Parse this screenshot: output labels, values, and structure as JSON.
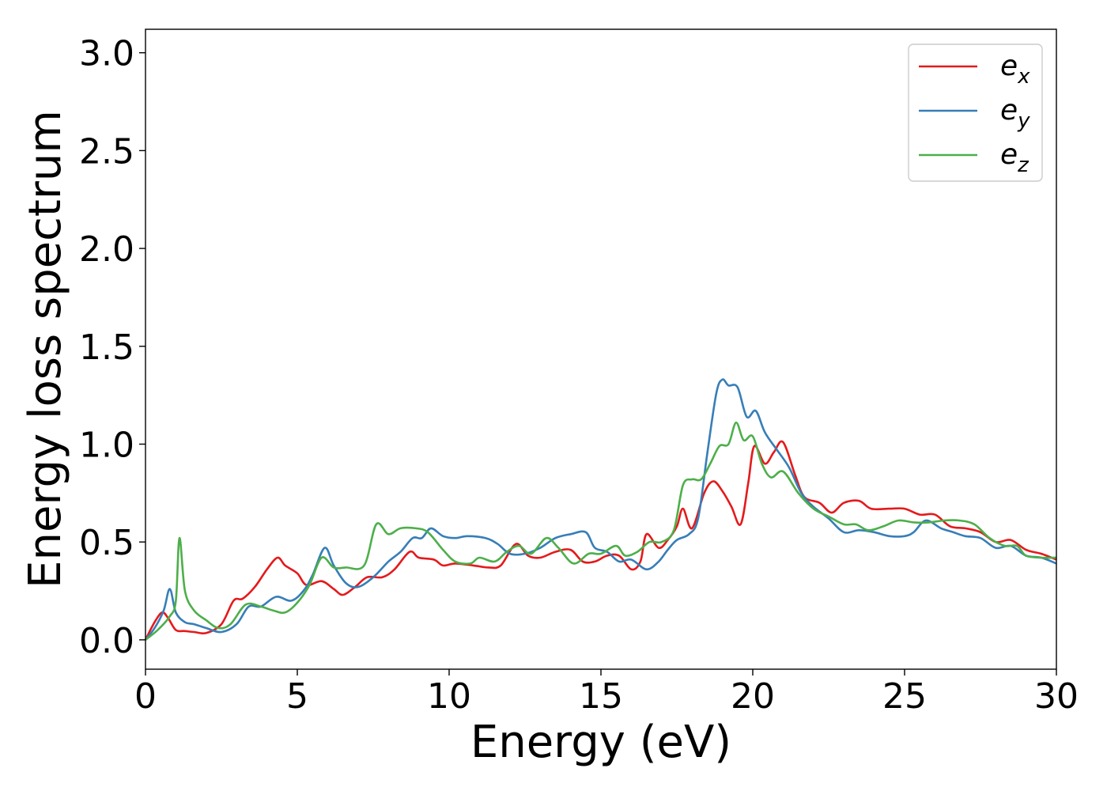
{
  "chart_data": {
    "type": "line",
    "title": "",
    "xlabel": "Energy (eV)",
    "ylabel": "Energy loss spectrum",
    "xlim": [
      0,
      30
    ],
    "ylim": [
      -0.15,
      3.12
    ],
    "xticks": [
      0,
      5,
      10,
      15,
      20,
      25,
      30
    ],
    "xtick_labels": [
      "0",
      "5",
      "10",
      "15",
      "20",
      "25",
      "30"
    ],
    "yticks": [
      0.0,
      0.5,
      1.0,
      1.5,
      2.0,
      2.5,
      3.0
    ],
    "ytick_labels": [
      "0.0",
      "0.5",
      "1.0",
      "1.5",
      "2.0",
      "2.5",
      "3.0"
    ],
    "grid": false,
    "legend_position": "top-right",
    "series": [
      {
        "name": "e_x",
        "label_base": "e",
        "label_sub": "x",
        "color": "#e41a1c",
        "points": [
          [
            0,
            0
          ],
          [
            0.3,
            0.09
          ],
          [
            0.55,
            0.14
          ],
          [
            0.75,
            0.11
          ],
          [
            1.0,
            0.05
          ],
          [
            1.3,
            0.045
          ],
          [
            1.6,
            0.04
          ],
          [
            2.0,
            0.035
          ],
          [
            2.5,
            0.08
          ],
          [
            2.9,
            0.2
          ],
          [
            3.2,
            0.21
          ],
          [
            3.6,
            0.27
          ],
          [
            4.0,
            0.36
          ],
          [
            4.35,
            0.42
          ],
          [
            4.6,
            0.38
          ],
          [
            5.0,
            0.34
          ],
          [
            5.3,
            0.28
          ],
          [
            5.8,
            0.3
          ],
          [
            6.2,
            0.26
          ],
          [
            6.5,
            0.23
          ],
          [
            6.9,
            0.27
          ],
          [
            7.3,
            0.32
          ],
          [
            7.8,
            0.32
          ],
          [
            8.2,
            0.36
          ],
          [
            8.7,
            0.45
          ],
          [
            9.0,
            0.42
          ],
          [
            9.5,
            0.41
          ],
          [
            9.8,
            0.38
          ],
          [
            10.2,
            0.39
          ],
          [
            10.8,
            0.38
          ],
          [
            11.3,
            0.37
          ],
          [
            11.7,
            0.38
          ],
          [
            12.2,
            0.49
          ],
          [
            12.6,
            0.43
          ],
          [
            13.0,
            0.42
          ],
          [
            13.5,
            0.45
          ],
          [
            14.0,
            0.46
          ],
          [
            14.4,
            0.4
          ],
          [
            14.8,
            0.4
          ],
          [
            15.2,
            0.43
          ],
          [
            15.6,
            0.43
          ],
          [
            16.0,
            0.36
          ],
          [
            16.3,
            0.4
          ],
          [
            16.5,
            0.54
          ],
          [
            16.9,
            0.47
          ],
          [
            17.2,
            0.51
          ],
          [
            17.5,
            0.58
          ],
          [
            17.7,
            0.67
          ],
          [
            18.0,
            0.57
          ],
          [
            18.4,
            0.75
          ],
          [
            18.7,
            0.81
          ],
          [
            19.0,
            0.76
          ],
          [
            19.3,
            0.68
          ],
          [
            19.6,
            0.59
          ],
          [
            19.85,
            0.8
          ],
          [
            20.05,
            0.99
          ],
          [
            20.4,
            0.9
          ],
          [
            20.7,
            0.96
          ],
          [
            21.0,
            1.01
          ],
          [
            21.4,
            0.84
          ],
          [
            21.7,
            0.73
          ],
          [
            22.2,
            0.7
          ],
          [
            22.6,
            0.65
          ],
          [
            23.0,
            0.7
          ],
          [
            23.5,
            0.71
          ],
          [
            23.9,
            0.67
          ],
          [
            24.5,
            0.67
          ],
          [
            25.0,
            0.67
          ],
          [
            25.5,
            0.64
          ],
          [
            26.0,
            0.64
          ],
          [
            26.5,
            0.58
          ],
          [
            27.0,
            0.57
          ],
          [
            27.5,
            0.55
          ],
          [
            28.0,
            0.5
          ],
          [
            28.5,
            0.51
          ],
          [
            29.0,
            0.46
          ],
          [
            29.5,
            0.44
          ],
          [
            30.0,
            0.41
          ]
        ]
      },
      {
        "name": "e_y",
        "label_base": "e",
        "label_sub": "y",
        "color": "#377eb8",
        "points": [
          [
            0,
            0
          ],
          [
            0.3,
            0.06
          ],
          [
            0.6,
            0.15
          ],
          [
            0.8,
            0.26
          ],
          [
            1.0,
            0.14
          ],
          [
            1.3,
            0.09
          ],
          [
            1.6,
            0.08
          ],
          [
            2.0,
            0.06
          ],
          [
            2.5,
            0.04
          ],
          [
            3.0,
            0.08
          ],
          [
            3.4,
            0.17
          ],
          [
            3.8,
            0.17
          ],
          [
            4.3,
            0.22
          ],
          [
            4.8,
            0.2
          ],
          [
            5.2,
            0.25
          ],
          [
            5.5,
            0.33
          ],
          [
            5.9,
            0.47
          ],
          [
            6.2,
            0.38
          ],
          [
            6.6,
            0.29
          ],
          [
            7.0,
            0.27
          ],
          [
            7.5,
            0.32
          ],
          [
            8.0,
            0.4
          ],
          [
            8.4,
            0.45
          ],
          [
            8.8,
            0.52
          ],
          [
            9.1,
            0.52
          ],
          [
            9.4,
            0.57
          ],
          [
            9.8,
            0.53
          ],
          [
            10.2,
            0.52
          ],
          [
            10.6,
            0.53
          ],
          [
            11.2,
            0.52
          ],
          [
            11.6,
            0.49
          ],
          [
            12.0,
            0.44
          ],
          [
            12.5,
            0.44
          ],
          [
            13.0,
            0.47
          ],
          [
            13.5,
            0.52
          ],
          [
            14.0,
            0.54
          ],
          [
            14.5,
            0.55
          ],
          [
            14.8,
            0.47
          ],
          [
            15.2,
            0.45
          ],
          [
            15.6,
            0.4
          ],
          [
            16.0,
            0.41
          ],
          [
            16.5,
            0.36
          ],
          [
            16.9,
            0.4
          ],
          [
            17.2,
            0.46
          ],
          [
            17.5,
            0.51
          ],
          [
            17.9,
            0.54
          ],
          [
            18.2,
            0.62
          ],
          [
            18.5,
            0.95
          ],
          [
            18.8,
            1.26
          ],
          [
            19.0,
            1.33
          ],
          [
            19.2,
            1.3
          ],
          [
            19.5,
            1.29
          ],
          [
            19.8,
            1.14
          ],
          [
            20.1,
            1.17
          ],
          [
            20.4,
            1.06
          ],
          [
            20.8,
            0.97
          ],
          [
            21.2,
            0.88
          ],
          [
            21.6,
            0.75
          ],
          [
            22.0,
            0.68
          ],
          [
            22.5,
            0.62
          ],
          [
            23.0,
            0.55
          ],
          [
            23.5,
            0.56
          ],
          [
            24.0,
            0.55
          ],
          [
            24.5,
            0.53
          ],
          [
            25.0,
            0.53
          ],
          [
            25.3,
            0.55
          ],
          [
            25.7,
            0.61
          ],
          [
            26.2,
            0.57
          ],
          [
            26.6,
            0.55
          ],
          [
            27.0,
            0.53
          ],
          [
            27.5,
            0.52
          ],
          [
            28.0,
            0.47
          ],
          [
            28.5,
            0.48
          ],
          [
            29.0,
            0.43
          ],
          [
            29.5,
            0.42
          ],
          [
            30.0,
            0.39
          ]
        ]
      },
      {
        "name": "e_z",
        "label_base": "e",
        "label_sub": "z",
        "color": "#4daf4a",
        "points": [
          [
            0,
            0
          ],
          [
            0.4,
            0.05
          ],
          [
            0.8,
            0.12
          ],
          [
            1.0,
            0.2
          ],
          [
            1.12,
            0.52
          ],
          [
            1.3,
            0.25
          ],
          [
            1.6,
            0.15
          ],
          [
            2.0,
            0.1
          ],
          [
            2.4,
            0.06
          ],
          [
            2.8,
            0.08
          ],
          [
            3.3,
            0.18
          ],
          [
            3.8,
            0.17
          ],
          [
            4.2,
            0.15
          ],
          [
            4.6,
            0.14
          ],
          [
            5.0,
            0.19
          ],
          [
            5.4,
            0.28
          ],
          [
            5.8,
            0.42
          ],
          [
            6.2,
            0.37
          ],
          [
            6.6,
            0.37
          ],
          [
            7.2,
            0.38
          ],
          [
            7.6,
            0.59
          ],
          [
            8.0,
            0.54
          ],
          [
            8.4,
            0.57
          ],
          [
            8.9,
            0.57
          ],
          [
            9.3,
            0.55
          ],
          [
            9.8,
            0.46
          ],
          [
            10.2,
            0.4
          ],
          [
            10.7,
            0.39
          ],
          [
            11.0,
            0.42
          ],
          [
            11.5,
            0.4
          ],
          [
            11.9,
            0.45
          ],
          [
            12.3,
            0.48
          ],
          [
            12.7,
            0.44
          ],
          [
            13.2,
            0.52
          ],
          [
            13.6,
            0.47
          ],
          [
            14.1,
            0.39
          ],
          [
            14.6,
            0.44
          ],
          [
            15.0,
            0.44
          ],
          [
            15.5,
            0.48
          ],
          [
            15.8,
            0.43
          ],
          [
            16.2,
            0.45
          ],
          [
            16.6,
            0.5
          ],
          [
            17.0,
            0.5
          ],
          [
            17.4,
            0.56
          ],
          [
            17.7,
            0.79
          ],
          [
            18.0,
            0.82
          ],
          [
            18.3,
            0.82
          ],
          [
            18.6,
            0.9
          ],
          [
            18.9,
            0.99
          ],
          [
            19.2,
            1.0
          ],
          [
            19.45,
            1.11
          ],
          [
            19.7,
            1.02
          ],
          [
            20.0,
            1.04
          ],
          [
            20.3,
            0.9
          ],
          [
            20.6,
            0.83
          ],
          [
            21.0,
            0.86
          ],
          [
            21.5,
            0.75
          ],
          [
            22.0,
            0.67
          ],
          [
            22.5,
            0.63
          ],
          [
            23.0,
            0.59
          ],
          [
            23.4,
            0.59
          ],
          [
            23.8,
            0.56
          ],
          [
            24.3,
            0.58
          ],
          [
            24.8,
            0.61
          ],
          [
            25.3,
            0.6
          ],
          [
            25.8,
            0.6
          ],
          [
            26.3,
            0.61
          ],
          [
            26.8,
            0.61
          ],
          [
            27.3,
            0.59
          ],
          [
            27.8,
            0.52
          ],
          [
            28.3,
            0.48
          ],
          [
            28.7,
            0.48
          ],
          [
            29.0,
            0.43
          ],
          [
            29.5,
            0.42
          ],
          [
            30.0,
            0.42
          ]
        ]
      }
    ]
  }
}
